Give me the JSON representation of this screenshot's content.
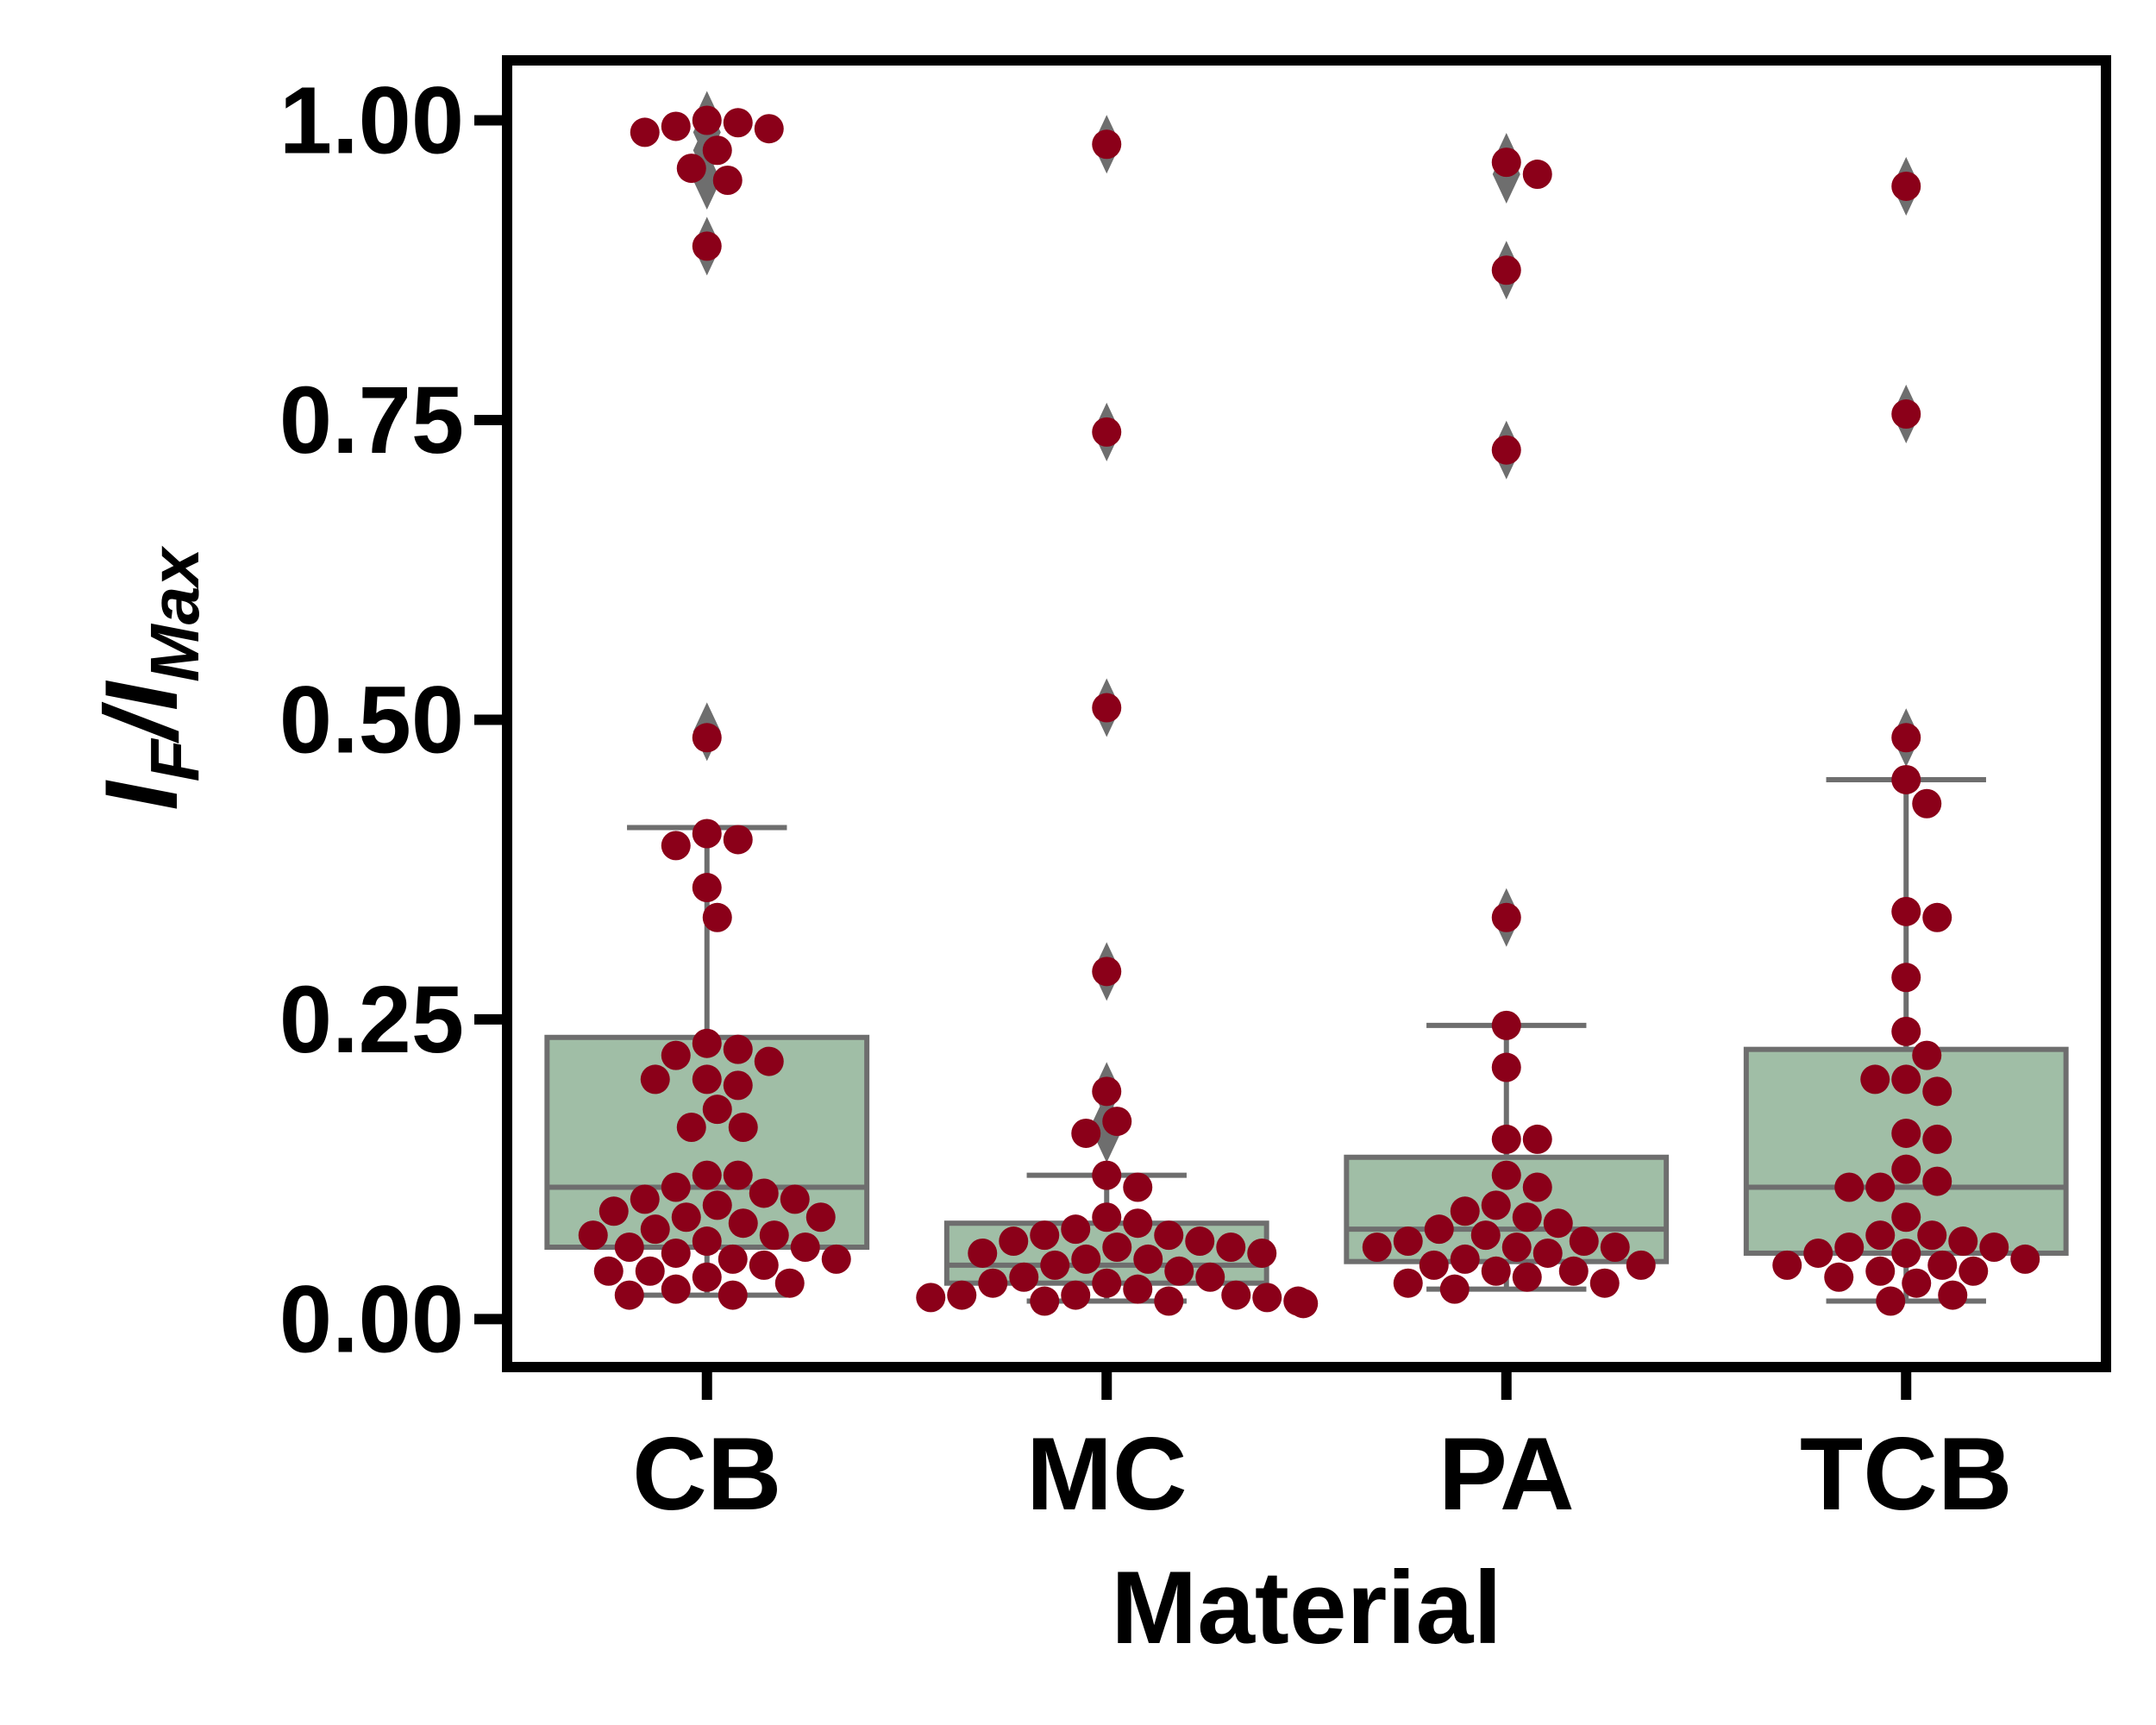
{
  "colors": {
    "box_fill": "#a0bea6",
    "box_edge": "#6e6e6e",
    "point": "#8b0019",
    "axis": "#000000"
  },
  "chart_data": {
    "type": "box",
    "xlabel": "Material",
    "ylabel": "I",
    "ylabel_sub": "F",
    "ylabel_tail": "/I",
    "ylabel_sub2": "Max",
    "categories": [
      "CB",
      "MC",
      "PA",
      "TCB"
    ],
    "ylim": [
      -0.04,
      1.05
    ],
    "yticks": [
      0.0,
      0.25,
      0.5,
      0.75,
      1.0
    ],
    "ytick_labels": [
      "0.00",
      "0.25",
      "0.50",
      "0.75",
      "1.00"
    ],
    "grid": false,
    "boxes": [
      {
        "name": "CB",
        "whisker_low": 0.02,
        "q1": 0.06,
        "median": 0.11,
        "q3": 0.235,
        "whisker_high": 0.41,
        "fliers": [
          1.0,
          0.99,
          0.975,
          0.95,
          0.895,
          0.49
        ]
      },
      {
        "name": "MC",
        "whisker_low": 0.015,
        "q1": 0.03,
        "median": 0.045,
        "q3": 0.08,
        "whisker_high": 0.12,
        "fliers": [
          0.98,
          0.74,
          0.51,
          0.29,
          0.19,
          0.165,
          0.155
        ]
      },
      {
        "name": "PA",
        "whisker_low": 0.025,
        "q1": 0.048,
        "median": 0.075,
        "q3": 0.135,
        "whisker_high": 0.245,
        "fliers": [
          0.965,
          0.955,
          0.875,
          0.725,
          0.335
        ]
      },
      {
        "name": "TCB",
        "whisker_low": 0.015,
        "q1": 0.055,
        "median": 0.11,
        "q3": 0.225,
        "whisker_high": 0.45,
        "fliers": [
          0.945,
          0.755,
          0.485
        ]
      }
    ],
    "points": [
      {
        "category": "CB",
        "values": [
          1.0,
          0.998,
          0.995,
          0.993,
          0.99,
          0.975,
          0.96,
          0.95,
          0.895,
          0.485,
          0.405,
          0.4,
          0.395,
          0.36,
          0.335,
          0.23,
          0.225,
          0.22,
          0.215,
          0.2,
          0.2,
          0.195,
          0.175,
          0.16,
          0.16,
          0.12,
          0.12,
          0.11,
          0.105,
          0.1,
          0.1,
          0.095,
          0.09,
          0.085,
          0.085,
          0.08,
          0.075,
          0.07,
          0.07,
          0.065,
          0.06,
          0.06,
          0.055,
          0.05,
          0.05,
          0.045,
          0.04,
          0.04,
          0.035,
          0.03,
          0.025,
          0.02,
          0.02
        ]
      },
      {
        "category": "MC",
        "values": [
          0.98,
          0.74,
          0.51,
          0.29,
          0.19,
          0.165,
          0.155,
          0.12,
          0.11,
          0.085,
          0.08,
          0.075,
          0.07,
          0.07,
          0.065,
          0.065,
          0.06,
          0.06,
          0.055,
          0.055,
          0.05,
          0.05,
          0.045,
          0.04,
          0.035,
          0.035,
          0.03,
          0.03,
          0.025,
          0.02,
          0.02,
          0.02,
          0.018,
          0.018,
          0.015,
          0.015,
          0.015,
          0.013
        ]
      },
      {
        "category": "PA",
        "values": [
          0.965,
          0.955,
          0.875,
          0.725,
          0.335,
          0.245,
          0.21,
          0.15,
          0.15,
          0.12,
          0.11,
          0.095,
          0.09,
          0.085,
          0.08,
          0.075,
          0.07,
          0.065,
          0.065,
          0.06,
          0.06,
          0.06,
          0.055,
          0.05,
          0.045,
          0.045,
          0.04,
          0.04,
          0.035,
          0.03,
          0.03,
          0.025
        ]
      },
      {
        "category": "TCB",
        "values": [
          0.945,
          0.755,
          0.485,
          0.45,
          0.43,
          0.34,
          0.335,
          0.285,
          0.24,
          0.22,
          0.2,
          0.2,
          0.19,
          0.155,
          0.15,
          0.125,
          0.115,
          0.11,
          0.11,
          0.085,
          0.07,
          0.07,
          0.065,
          0.06,
          0.06,
          0.055,
          0.055,
          0.05,
          0.045,
          0.045,
          0.04,
          0.04,
          0.035,
          0.03,
          0.02,
          0.015
        ]
      }
    ]
  }
}
